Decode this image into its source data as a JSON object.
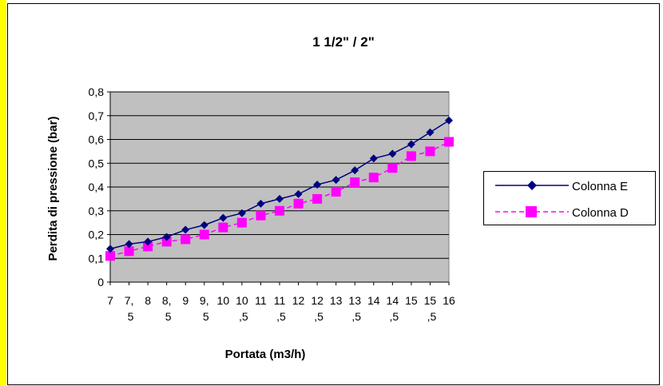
{
  "chart_data": {
    "type": "line",
    "title": "1 1/2\"  /  2\"",
    "xlabel": "Portata (m3/h)",
    "ylabel": "Perdita di pressione (bar)",
    "ylim": [
      0,
      0.8
    ],
    "yticks": [
      "0",
      "0,1",
      "0,2",
      "0,3",
      "0,4",
      "0,5",
      "0,6",
      "0,7",
      "0,8"
    ],
    "categories": [
      [
        "7",
        ""
      ],
      [
        "7,",
        "5"
      ],
      [
        "8",
        ""
      ],
      [
        "8,",
        "5"
      ],
      [
        "9",
        ""
      ],
      [
        "9,",
        "5"
      ],
      [
        "10",
        ""
      ],
      [
        "10",
        ",5"
      ],
      [
        "11",
        ""
      ],
      [
        "11",
        ",5"
      ],
      [
        "12",
        ""
      ],
      [
        "12",
        ",5"
      ],
      [
        "13",
        ""
      ],
      [
        "13",
        ",5"
      ],
      [
        "14",
        ""
      ],
      [
        "14",
        ",5"
      ],
      [
        "15",
        ""
      ],
      [
        "15",
        ",5"
      ],
      [
        "16",
        ""
      ]
    ],
    "grid": true,
    "legend_position": "right",
    "series": [
      {
        "name": "Colonna E",
        "color": "#000080",
        "marker": "diamond",
        "line": "solid",
        "values": [
          0.14,
          0.16,
          0.17,
          0.19,
          0.22,
          0.24,
          0.27,
          0.29,
          0.33,
          0.35,
          0.37,
          0.41,
          0.43,
          0.47,
          0.52,
          0.54,
          0.58,
          0.63,
          0.68
        ]
      },
      {
        "name": "Colonna D",
        "color": "#ff00ff",
        "marker": "square",
        "line": "dashed",
        "values": [
          0.11,
          0.13,
          0.15,
          0.17,
          0.18,
          0.2,
          0.23,
          0.25,
          0.28,
          0.3,
          0.33,
          0.35,
          0.38,
          0.42,
          0.44,
          0.48,
          0.53,
          0.55,
          0.59
        ]
      }
    ]
  },
  "colors": {
    "plot_background": "#c0c0c0",
    "gridline": "#000000",
    "left_border": "#ffff00"
  }
}
